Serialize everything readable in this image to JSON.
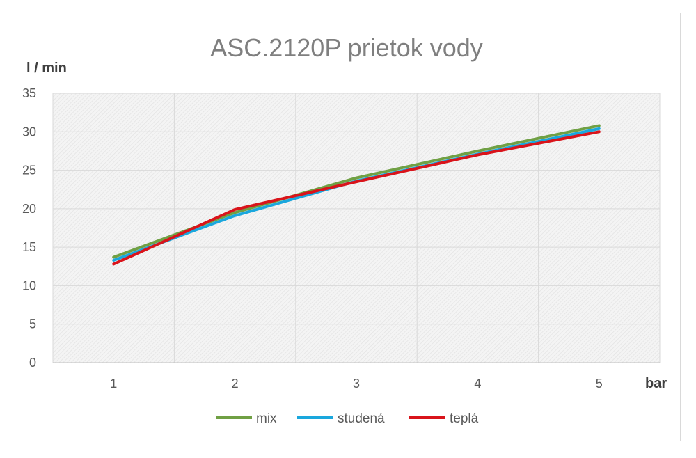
{
  "chart_data": {
    "type": "line",
    "title": "ASC.2120P prietok vody",
    "ylabel": "l / min",
    "xlabel": "bar",
    "categories": [
      "1",
      "2",
      "3",
      "4",
      "5"
    ],
    "ylim": [
      0,
      35
    ],
    "yticks": [
      "0",
      "5",
      "10",
      "15",
      "20",
      "25",
      "30",
      "35"
    ],
    "grid": true,
    "legend_position": "bottom",
    "series": [
      {
        "name": "mix",
        "color": "#70a044",
        "values": [
          13.7,
          19.5,
          24.0,
          27.5,
          30.8
        ]
      },
      {
        "name": "studená",
        "color": "#1aa7dd",
        "values": [
          13.3,
          19.1,
          23.6,
          27.1,
          30.4
        ]
      },
      {
        "name": "teplá",
        "color": "#d9141b",
        "values": [
          12.8,
          19.9,
          23.5,
          27.0,
          30.0
        ]
      }
    ]
  }
}
